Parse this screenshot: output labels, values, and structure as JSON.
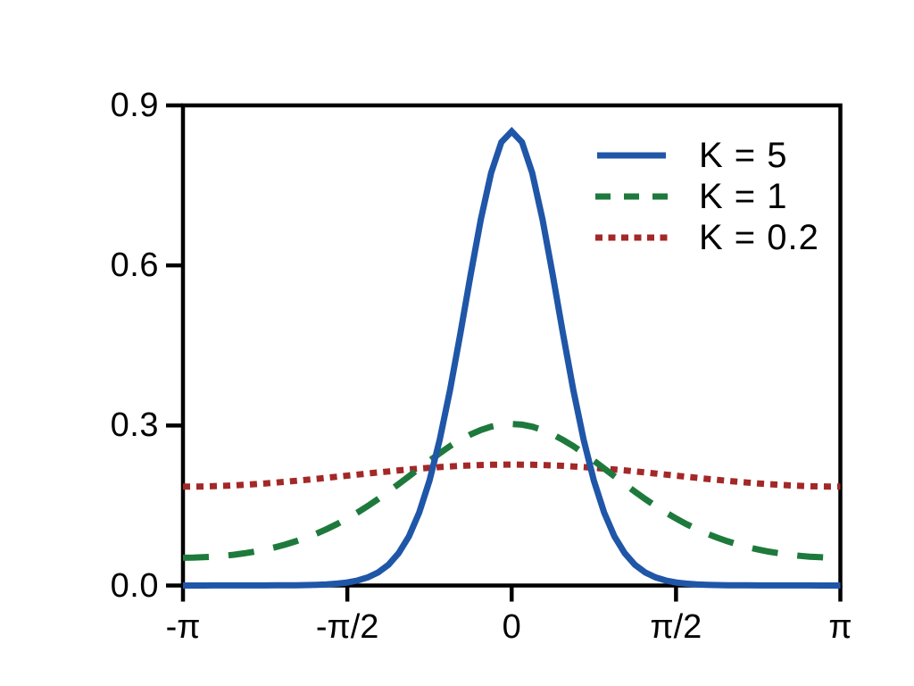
{
  "chart_data": {
    "type": "line",
    "title": "",
    "xlabel": "",
    "ylabel": "",
    "x_unit": "angle in multiples of π (radians)",
    "xlim_over_pi": [
      -1,
      1
    ],
    "ylim": [
      0,
      0.9
    ],
    "grid": false,
    "frame": "full-box",
    "legend": {
      "position": "top-right",
      "frame": false
    },
    "xtick_labels": [
      "-π",
      "-π/2",
      "0",
      "π/2",
      "π"
    ],
    "xticks_over_pi": [
      -1,
      -0.5,
      0,
      0.5,
      1
    ],
    "ytick_labels": [
      "0.0",
      "0.3",
      "0.6",
      "0.9"
    ],
    "yticks": [
      0,
      0.3,
      0.6,
      0.9
    ],
    "axis_color": "#000000",
    "x_over_pi": [
      -1,
      -0.9688,
      -0.9375,
      -0.9063,
      -0.875,
      -0.8438,
      -0.8125,
      -0.7813,
      -0.75,
      -0.7188,
      -0.6875,
      -0.6563,
      -0.625,
      -0.5938,
      -0.5625,
      -0.5313,
      -0.5,
      -0.4688,
      -0.4375,
      -0.4063,
      -0.375,
      -0.3438,
      -0.3125,
      -0.2813,
      -0.25,
      -0.2188,
      -0.1875,
      -0.1563,
      -0.125,
      -0.0938,
      -0.0625,
      -0.0313,
      0,
      0.0313,
      0.0625,
      0.0938,
      0.125,
      0.1563,
      0.1875,
      0.2188,
      0.25,
      0.2813,
      0.3125,
      0.3438,
      0.375,
      0.4063,
      0.4375,
      0.4688,
      0.5,
      0.5313,
      0.5625,
      0.5938,
      0.625,
      0.6563,
      0.6875,
      0.7188,
      0.75,
      0.7813,
      0.8125,
      0.8438,
      0.875,
      0.9063,
      0.9375,
      0.9688,
      1
    ],
    "series": [
      {
        "name": "K = 5",
        "color": "#1f56a8",
        "style": "solid",
        "peak_value": 0.85,
        "values": [
          0.0,
          0.0,
          0.0,
          0.0001,
          0.0001,
          0.0001,
          0.0001,
          0.0001,
          0.0002,
          0.0003,
          0.0004,
          0.0005,
          0.0008,
          0.0013,
          0.0022,
          0.0035,
          0.0057,
          0.0094,
          0.0152,
          0.0245,
          0.0389,
          0.0606,
          0.0922,
          0.1369,
          0.1968,
          0.2737,
          0.3665,
          0.4717,
          0.5818,
          0.6864,
          0.7733,
          0.831,
          0.8513,
          0.831,
          0.7733,
          0.6864,
          0.5818,
          0.4717,
          0.3665,
          0.2737,
          0.1968,
          0.1369,
          0.0922,
          0.0606,
          0.0389,
          0.0245,
          0.0152,
          0.0094,
          0.0057,
          0.0035,
          0.0022,
          0.0013,
          0.0008,
          0.0005,
          0.0004,
          0.0003,
          0.0002,
          0.0001,
          0.0001,
          0.0001,
          0.0001,
          0.0001,
          0.0,
          0.0,
          0.0
        ]
      },
      {
        "name": "K = 1",
        "color": "#1e7a3c",
        "style": "dashed",
        "peak_value": 0.3,
        "values": [
          0.0521,
          0.0523,
          0.053,
          0.0541,
          0.0557,
          0.0578,
          0.0604,
          0.0636,
          0.0674,
          0.0719,
          0.077,
          0.083,
          0.0897,
          0.0973,
          0.1058,
          0.1152,
          0.1256,
          0.1369,
          0.1491,
          0.1621,
          0.1759,
          0.1902,
          0.2048,
          0.2195,
          0.2339,
          0.2479,
          0.2613,
          0.273,
          0.2832,
          0.2916,
          0.2977,
          0.3015,
          0.3028,
          0.3015,
          0.2977,
          0.2916,
          0.2832,
          0.273,
          0.2613,
          0.2479,
          0.2339,
          0.2195,
          0.2048,
          0.1902,
          0.1759,
          0.1621,
          0.1491,
          0.1369,
          0.1256,
          0.1152,
          0.1058,
          0.0973,
          0.0897,
          0.083,
          0.077,
          0.0719,
          0.0674,
          0.0636,
          0.0604,
          0.0578,
          0.0557,
          0.0541,
          0.053,
          0.0523,
          0.0521
        ]
      },
      {
        "name": "K = 0.2",
        "color": "#a32828",
        "style": "dotted",
        "peak_value": 0.23,
        "values": [
          0.1853,
          0.1854,
          0.1857,
          0.1862,
          0.1869,
          0.1877,
          0.1888,
          0.19,
          0.1914,
          0.1929,
          0.1945,
          0.1962,
          0.1981,
          0.2,
          0.202,
          0.204,
          0.206,
          0.208,
          0.21,
          0.212,
          0.2139,
          0.2158,
          0.2175,
          0.2191,
          0.2206,
          0.222,
          0.2232,
          0.2243,
          0.2251,
          0.2258,
          0.2263,
          0.2266,
          0.2267,
          0.2266,
          0.2263,
          0.2258,
          0.2251,
          0.2243,
          0.2232,
          0.222,
          0.2206,
          0.2191,
          0.2175,
          0.2158,
          0.2139,
          0.212,
          0.21,
          0.208,
          0.206,
          0.204,
          0.202,
          0.2,
          0.1981,
          0.1962,
          0.1945,
          0.1929,
          0.1914,
          0.19,
          0.1888,
          0.1877,
          0.1869,
          0.1862,
          0.1857,
          0.1854,
          0.1853
        ]
      }
    ]
  }
}
